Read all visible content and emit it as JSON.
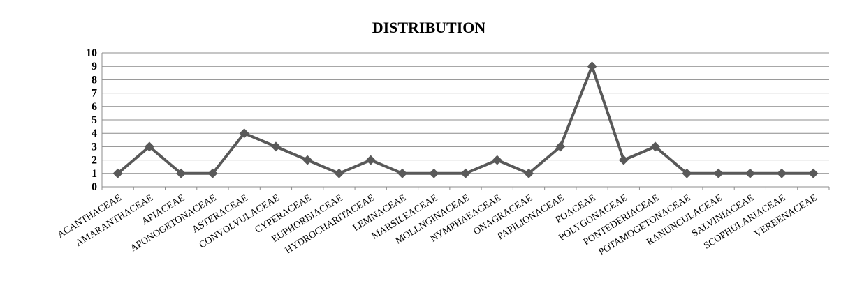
{
  "chart_data": {
    "type": "line",
    "title": "DISTRIBUTION",
    "xlabel": "",
    "ylabel": "",
    "ylim": [
      0,
      10
    ],
    "yticks": [
      0,
      1,
      2,
      3,
      4,
      5,
      6,
      7,
      8,
      9,
      10
    ],
    "grid": true,
    "legend": "none",
    "categories": [
      "ACANTHACEAE",
      "AMARANTHACEAE",
      "APIACEAE",
      "APONOGETONACEAE",
      "ASTERACEAE",
      "CONVOLVULACEAE",
      "CYPERACEAE",
      "EUPHORBIACEAE",
      "HYDROCHARITACEAE",
      "LEMNACEAE",
      "MARSILEACEAE",
      "MOLLNGINACEAE",
      "NYMPHAEACEAE",
      "ONAGRACEAE",
      "PAPILIONACEAE",
      "POACEAE",
      "POLYGONACEAE",
      "PONTEDERIACEAE",
      "POTAMOGETONACEAE",
      "RANUNCULACEAE",
      "SALVINIACEAE",
      "SCOPHULARIACEAE",
      "VERBENACEAE"
    ],
    "series": [
      {
        "values": [
          1,
          3,
          1,
          1,
          4,
          3,
          2,
          1,
          2,
          1,
          1,
          1,
          2,
          1,
          3,
          9,
          2,
          3,
          1,
          1,
          1,
          1,
          1
        ],
        "color": "#595959",
        "marker": "diamond"
      }
    ]
  }
}
